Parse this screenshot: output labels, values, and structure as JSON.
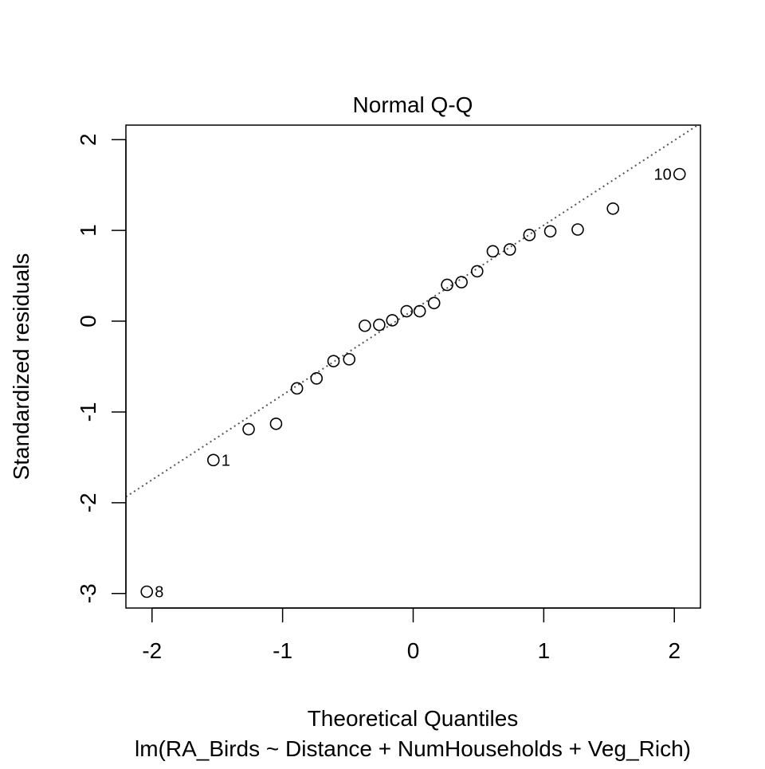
{
  "chart_data": {
    "type": "scatter",
    "title": "Normal Q-Q",
    "xlabel": "Theoretical Quantiles",
    "ylabel": "Standardized residuals",
    "subtitle": "lm(RA_Birds ~ Distance + NumHouseholds + Veg_Rich)",
    "xlim": [
      -2.2,
      2.2
    ],
    "ylim": [
      -3.16,
      2.16
    ],
    "x_ticks": [
      -2,
      -1,
      0,
      1,
      2
    ],
    "y_ticks": [
      -3,
      -2,
      -1,
      0,
      1,
      2
    ],
    "grid": false,
    "reference_line": {
      "style": "dotted",
      "color": "#555555",
      "intercept": 0.122,
      "slope": 0.935
    },
    "points": [
      {
        "x": -2.04,
        "y": -2.98,
        "label": "8"
      },
      {
        "x": -1.53,
        "y": -1.53,
        "label": "1"
      },
      {
        "x": -1.26,
        "y": -1.19
      },
      {
        "x": -1.05,
        "y": -1.13
      },
      {
        "x": -0.89,
        "y": -0.74
      },
      {
        "x": -0.74,
        "y": -0.63
      },
      {
        "x": -0.61,
        "y": -0.44
      },
      {
        "x": -0.49,
        "y": -0.42
      },
      {
        "x": -0.37,
        "y": -0.05
      },
      {
        "x": -0.26,
        "y": -0.04
      },
      {
        "x": -0.16,
        "y": 0.01
      },
      {
        "x": -0.05,
        "y": 0.11
      },
      {
        "x": 0.05,
        "y": 0.11
      },
      {
        "x": 0.16,
        "y": 0.2
      },
      {
        "x": 0.26,
        "y": 0.4
      },
      {
        "x": 0.37,
        "y": 0.43
      },
      {
        "x": 0.49,
        "y": 0.55
      },
      {
        "x": 0.61,
        "y": 0.77
      },
      {
        "x": 0.74,
        "y": 0.79
      },
      {
        "x": 0.89,
        "y": 0.95
      },
      {
        "x": 1.05,
        "y": 0.99
      },
      {
        "x": 1.26,
        "y": 1.01
      },
      {
        "x": 1.53,
        "y": 1.24
      },
      {
        "x": 2.04,
        "y": 1.62,
        "label": "10"
      }
    ]
  }
}
